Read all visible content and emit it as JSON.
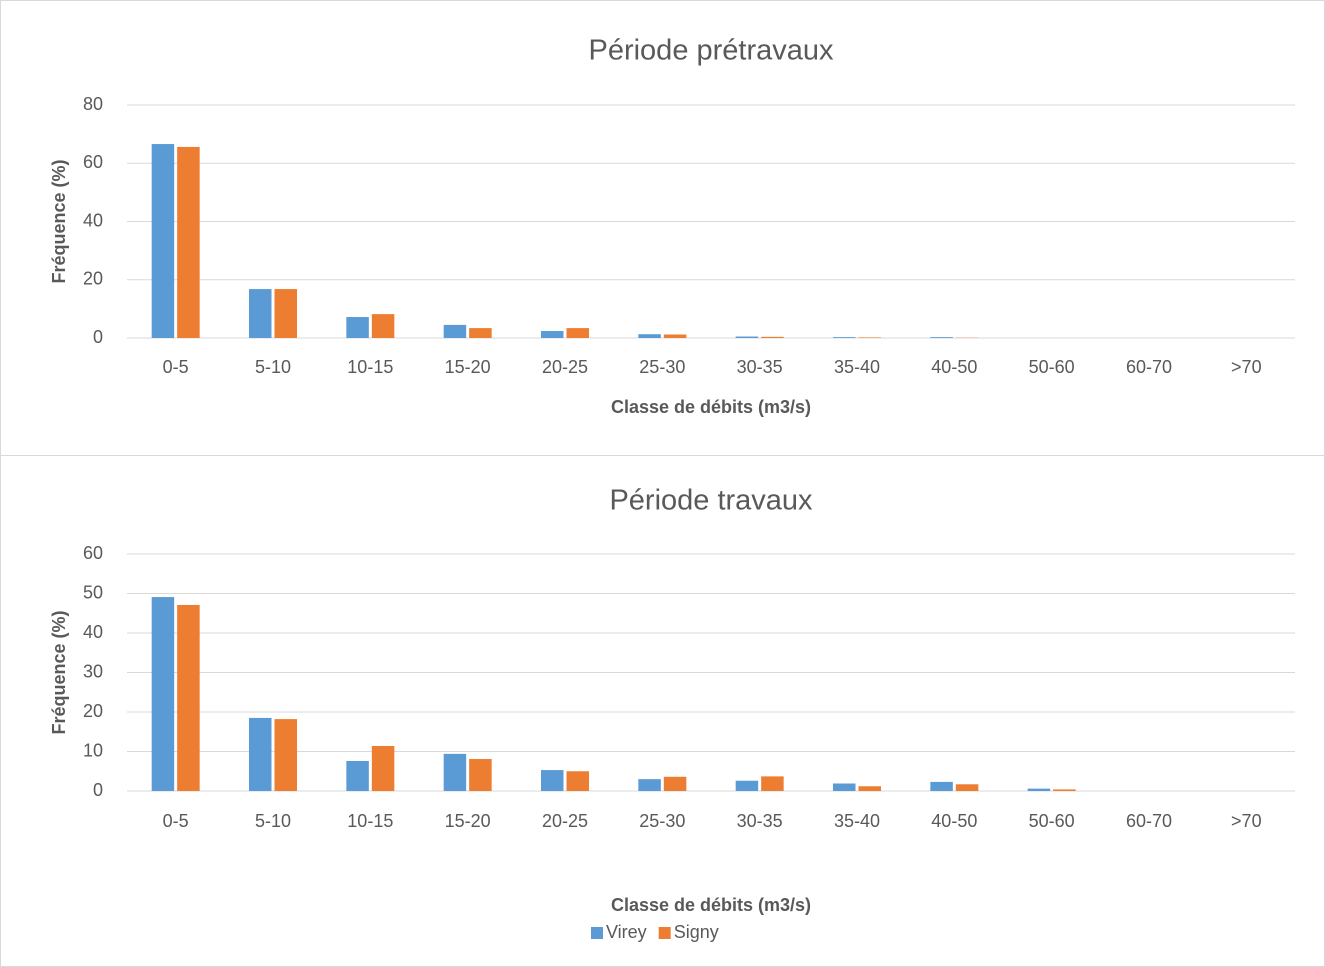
{
  "chart_data": [
    {
      "type": "bar",
      "title": "Période prétravaux",
      "x_label": "Classe de débits (m3/s)",
      "y_label": "Fréquence (%)",
      "categories": [
        "0-5",
        "5-10",
        "10-15",
        "15-20",
        "20-25",
        "25-30",
        "30-35",
        "35-40",
        "40-50",
        "50-60",
        "60-70",
        ">70"
      ],
      "series": [
        {
          "color": "#5b9bd5",
          "values": [
            66.6,
            16.8,
            7.2,
            4.5,
            2.4,
            1.3,
            0.5,
            0.3,
            0.3,
            0,
            0,
            0
          ]
        },
        {
          "color": "#ed7d31",
          "values": [
            65.6,
            16.8,
            8.2,
            3.4,
            3.4,
            1.2,
            0.4,
            0.2,
            0.1,
            0,
            0,
            0
          ]
        }
      ],
      "ylim": [
        0,
        80
      ],
      "yticks": [
        0,
        20,
        40,
        60,
        80
      ],
      "grid": true
    },
    {
      "type": "bar",
      "title": "Période travaux",
      "x_label": "Classe de débits (m3/s)",
      "y_label": "Fréquence (%)",
      "categories": [
        "0-5",
        "5-10",
        "10-15",
        "15-20",
        "20-25",
        "25-30",
        "30-35",
        "35-40",
        "40-50",
        "50-60",
        "60-70",
        ">70"
      ],
      "series": [
        {
          "name": "Virey",
          "color": "#5b9bd5",
          "values": [
            49.1,
            18.5,
            7.6,
            9.4,
            5.3,
            3,
            2.6,
            1.9,
            2.3,
            0.6,
            0,
            0
          ]
        },
        {
          "name": "Signy",
          "color": "#ed7d31",
          "values": [
            47.1,
            18.2,
            11.4,
            8.1,
            5,
            3.6,
            3.7,
            1.2,
            1.7,
            0.4,
            0,
            0
          ]
        }
      ],
      "ylim": [
        0,
        60
      ],
      "yticks": [
        0,
        10,
        20,
        30,
        40,
        50,
        60
      ],
      "grid": true,
      "legend": "bottom"
    }
  ]
}
